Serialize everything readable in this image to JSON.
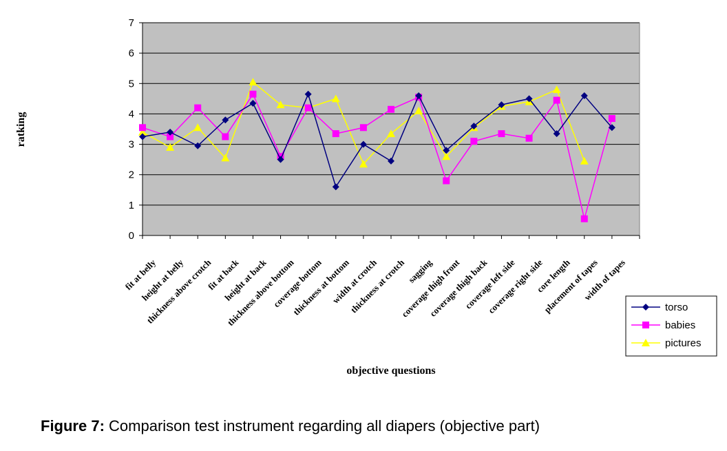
{
  "chart_data": {
    "type": "line",
    "xlabel": "objective questions",
    "ylabel": "ratking",
    "ylim": [
      0,
      7
    ],
    "yticks": [
      "0",
      "1",
      "2",
      "3",
      "4",
      "5",
      "6",
      "7"
    ],
    "grid": true,
    "legend_position": "bottom-right",
    "plot_background": "#C0C0C0",
    "categories": [
      "fit at belly",
      "height at belly",
      "thickness above crotch",
      "fit at back",
      "height at back",
      "thickness above bottom",
      "coverage bottom",
      "thickness at bottom",
      "width at crotch",
      "thickness at crotch",
      "sagging",
      "coverage thigh front",
      "coverage thigh back",
      "coverage left side",
      "coverage right side",
      "core length",
      "placement of tapes",
      "width of tapes"
    ],
    "series": [
      {
        "name": "torso",
        "color": "#000080",
        "marker": "diamond",
        "values": [
          3.25,
          3.4,
          2.95,
          3.8,
          4.35,
          2.5,
          4.65,
          1.6,
          3.0,
          2.45,
          4.6,
          2.8,
          3.6,
          4.3,
          4.5,
          3.35,
          4.6,
          3.55
        ]
      },
      {
        "name": "babies",
        "color": "#FF00FF",
        "marker": "square",
        "values": [
          3.55,
          3.25,
          4.2,
          3.25,
          4.65,
          2.6,
          4.2,
          3.35,
          3.55,
          4.15,
          4.55,
          1.8,
          3.1,
          3.35,
          3.2,
          4.45,
          0.55,
          3.85
        ]
      },
      {
        "name": "pictures",
        "color": "#FFFF00",
        "marker": "triangle",
        "values": [
          3.4,
          2.9,
          3.55,
          2.55,
          5.05,
          4.3,
          4.2,
          4.5,
          2.35,
          3.35,
          4.1,
          2.6,
          3.55,
          4.25,
          4.4,
          4.8,
          2.45,
          null
        ]
      }
    ]
  },
  "caption": {
    "label": "Figure 7:",
    "text": " Comparison test instrument regarding all diapers (objective part)"
  }
}
